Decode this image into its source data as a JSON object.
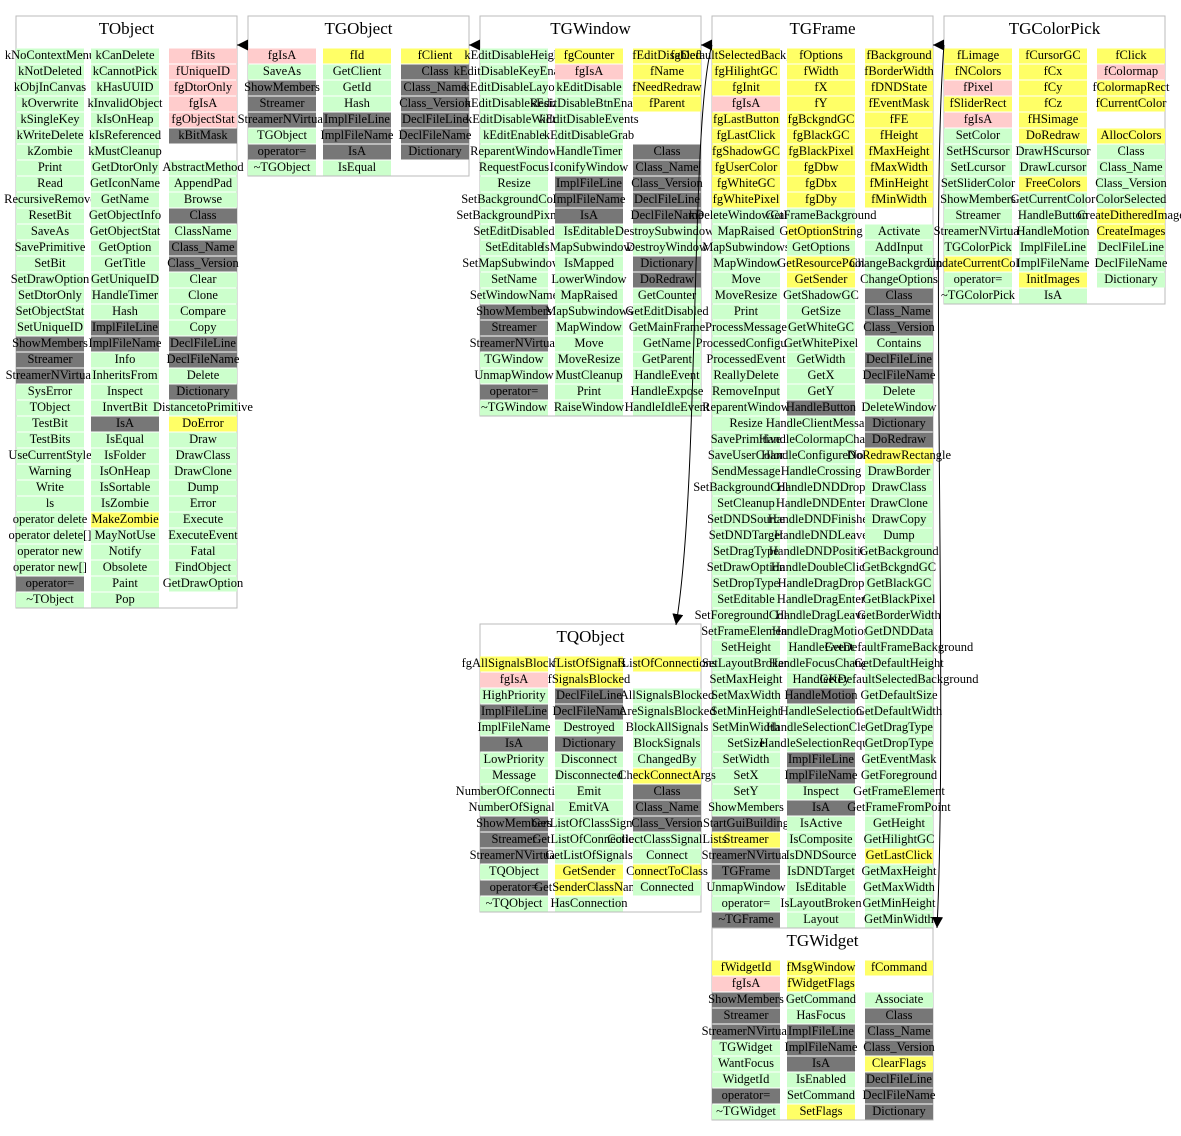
{
  "nodes": [
    {
      "title": "TObject",
      "columns": [
        {
          "cells": [
            "kNoContextMenu",
            "kNotDeleted",
            "kObjInCanvas",
            "kOverwrite",
            "kSingleKey",
            "kWriteDelete",
            "kZombie",
            "Print",
            "Read",
            "RecursiveRemove",
            "ResetBit",
            "SaveAs",
            "SavePrimitive",
            "SetBit",
            "SetDrawOption",
            "SetDtorOnly",
            "SetObjectStat",
            "SetUniqueID",
            "ShowMembers",
            "Streamer",
            "StreamerNVirtual",
            "SysError",
            "TObject",
            "TestBit",
            "TestBits",
            "UseCurrentStyle",
            "Warning",
            "Write",
            "ls",
            "operator delete",
            "operator delete[]",
            "operator new",
            "operator new[]",
            "operator=",
            "~TObject"
          ],
          "fills": "ggggggggggggggggggdddggggggggggggdg"
        },
        {
          "cells": [
            "kCanDelete",
            "kCannotPick",
            "kHasUUID",
            "kInvalidObject",
            "kIsOnHeap",
            "kIsReferenced",
            "kMustCleanup",
            "GetDtorOnly",
            "GetIconName",
            "GetName",
            "GetObjectInfo",
            "GetObjectStat",
            "GetOption",
            "GetTitle",
            "GetUniqueID",
            "HandleTimer",
            "Hash",
            "ImplFileLine",
            "ImplFileName",
            "Info",
            "InheritsFrom",
            "Inspect",
            "InvertBit",
            "IsA",
            "IsEqual",
            "IsFolder",
            "IsOnHeap",
            "IsSortable",
            "IsZombie",
            "MakeZombie",
            "MayNotUse",
            "Notify",
            "Obsolete",
            "Paint",
            "Pop"
          ],
          "fills": "gggggggggggggggggddggggdgggggyggggg"
        },
        {
          "cells": [
            "fBits",
            "fUniqueID",
            "fgDtorOnly",
            "fgIsA",
            "fgObjectStat",
            "kBitMask",
            null,
            "AbstractMethod",
            "AppendPad",
            "Browse",
            "Class",
            "ClassName",
            "Class_Name",
            "Class_Version",
            "Clear",
            "Clone",
            "Compare",
            "Copy",
            "DeclFileLine",
            "DeclFileName",
            "Delete",
            "Dictionary",
            "DistancetoPrimitive",
            "DoError",
            "Draw",
            "DrawClass",
            "DrawClone",
            "Dump",
            "Error",
            "Execute",
            "ExecuteEvent",
            "Fatal",
            "FindObject",
            "GetDrawOption"
          ],
          "fills": "pppppdwgggdgddggggddgdgygggggggggg"
        }
      ]
    },
    {
      "title": "TGObject",
      "columns": [
        {
          "cells": [
            "fgIsA",
            "SaveAs",
            "ShowMembers",
            "Streamer",
            "StreamerNVirtual",
            "TGObject",
            "operator=",
            "~TGObject"
          ],
          "fills": "pgdddgdg"
        },
        {
          "cells": [
            "fId",
            "GetClient",
            "GetId",
            "Hash",
            "ImplFileLine",
            "ImplFileName",
            "IsA",
            "IsEqual"
          ],
          "fills": "ygggdddg"
        },
        {
          "cells": [
            "fClient",
            "Class",
            "Class_Name",
            "Class_Version",
            "DeclFileLine",
            "DeclFileName",
            "Dictionary"
          ],
          "fills": "ydddddd"
        }
      ]
    },
    {
      "title": "TGWindow",
      "columns": [
        {
          "cells": [
            "kEditDisableHeight",
            "kEditDisableKeyEnable",
            "kEditDisableLayout",
            "kEditDisableResize",
            "kEditDisableWidth",
            "kEditEnable",
            "ReparentWindow",
            "RequestFocus",
            "Resize",
            "SetBackgroundColor",
            "SetBackgroundPixmap",
            "SetEditDisabled",
            "SetEditable",
            "SetMapSubwindows",
            "SetName",
            "SetWindowName",
            "ShowMembers",
            "Streamer",
            "StreamerNVirtual",
            "TGWindow",
            "UnmapWindow",
            "operator=",
            "~TGWindow"
          ],
          "fills": "ggggggggggggggggdddggdg"
        },
        {
          "cells": [
            "fgCounter",
            "fgIsA",
            "kEditDisable",
            "kEditDisableBtnEnable",
            "kEditDisableEvents",
            "kEditDisableGrab",
            "HandleTimer",
            "IconifyWindow",
            "ImplFileLine",
            "ImplFileName",
            "IsA",
            "IsEditable",
            "IsMapSubwindows",
            "IsMapped",
            "LowerWindow",
            "MapRaised",
            "MapSubwindows",
            "MapWindow",
            "Move",
            "MoveResize",
            "MustCleanup",
            "Print",
            "RaiseWindow"
          ],
          "fills": "ypggggggdddgggggggggggg"
        },
        {
          "cells": [
            "fEditDisabled",
            "fName",
            "fNeedRedraw",
            "fParent",
            null,
            null,
            "Class",
            "Class_Name",
            "Class_Version",
            "DeclFileLine",
            "DeclFileName",
            "DestroySubwindows",
            "DestroyWindow",
            "Dictionary",
            "DoRedraw",
            "GetCounter",
            "GetEditDisabled",
            "GetMainFrame",
            "GetName",
            "GetParent",
            "HandleEvent",
            "HandleExpose",
            "HandleIdleEvent"
          ],
          "fills": "yyyywwdddddggddgggggggg"
        }
      ]
    },
    {
      "title": "TGFrame",
      "columns": [
        {
          "cells": [
            "fgDefaultSelectedBackground",
            "fgHilightGC",
            "fgInit",
            "fgIsA",
            "fgLastButton",
            "fgLastClick",
            "fgShadowGC",
            "fgUserColor",
            "fgWhiteGC",
            "fgWhitePixel",
            "kDeleteWindowCalled",
            "MapRaised",
            "MapSubwindows",
            "MapWindow",
            "Move",
            "MoveResize",
            "Print",
            "ProcessMessage",
            "ProcessedConfigure",
            "ProcessedEvent",
            "ReallyDelete",
            "RemoveInput",
            "ReparentWindow",
            "Resize",
            "SavePrimitive",
            "SaveUserColor",
            "SendMessage",
            "SetBackgroundColor",
            "SetCleanup",
            "SetDNDSource",
            "SetDNDTarget",
            "SetDragType",
            "SetDrawOption",
            "SetDropType",
            "SetEditable",
            "SetForegroundColor",
            "SetFrameElement",
            "SetHeight",
            "SetLayoutBroken",
            "SetMaxHeight",
            "SetMaxWidth",
            "SetMinHeight",
            "SetMinWidth",
            "SetSize",
            "SetWidth",
            "SetX",
            "SetY",
            "ShowMembers",
            "StartGuiBuilding",
            "Streamer",
            "StreamerNVirtual",
            "TGFrame",
            "UnmapWindow",
            "operator=",
            "~TGFrame"
          ],
          "fills": "yyypyyyyyyggggggggggggggggggggggggggggggggggggggdyddggdg"
        },
        {
          "cells": [
            "fOptions",
            "fWidth",
            "fX",
            "fY",
            "fgBckgndGC",
            "fgBlackGC",
            "fgBlackPixel",
            "fgDbw",
            "fgDbx",
            "fgDby",
            "GetFrameBackground",
            "GetOptionString",
            "GetOptions",
            "GetResourcePool",
            "GetSender",
            "GetShadowGC",
            "GetSize",
            "GetWhiteGC",
            "GetWhitePixel",
            "GetWidth",
            "GetX",
            "GetY",
            "HandleButton",
            "HandleClientMessage",
            "HandleColormapChange",
            "HandleConfigureNotify",
            "HandleCrossing",
            "HandleDNDDrop",
            "HandleDNDEnter",
            "HandleDNDFinished",
            "HandleDNDLeave",
            "HandleDNDPosition",
            "HandleDoubleClick",
            "HandleDragDrop",
            "HandleDragEnter",
            "HandleDragLeave",
            "HandleDragMotion",
            "HandleEvent",
            "HandleFocusChange",
            "HandleKey",
            "HandleMotion",
            "HandleSelection",
            "HandleSelectionClear",
            "HandleSelectionRequest",
            "ImplFileLine",
            "ImplFileName",
            "Inspect",
            "IsA",
            "IsActive",
            "IsComposite",
            "IsDNDSource",
            "IsDNDTarget",
            "IsEditable",
            "IsLayoutBroken",
            "Layout"
          ],
          "fills": "yyyyyyyyyygygyygggggggdgggggggggggggggggdgggddgdggggggg"
        },
        {
          "cells": [
            "fBackground",
            "fBorderWidth",
            "fDNDState",
            "fEventMask",
            "fFE",
            "fHeight",
            "fMaxHeight",
            "fMaxWidth",
            "fMinHeight",
            "fMinWidth",
            null,
            "Activate",
            "AddInput",
            "ChangeBackground",
            "ChangeOptions",
            "Class",
            "Class_Name",
            "Class_Version",
            "Contains",
            "DeclFileLine",
            "DeclFileName",
            "Delete",
            "DeleteWindow",
            "Dictionary",
            "DoRedraw",
            "DoRedrawRectangle",
            "DrawBorder",
            "DrawClass",
            "DrawClone",
            "DrawCopy",
            "Dump",
            "GetBackground",
            "GetBckgndGC",
            "GetBlackGC",
            "GetBlackPixel",
            "GetBorderWidth",
            "GetDNDData",
            "GetDefaultFrameBackground",
            "GetDefaultHeight",
            "GetDefaultSelectedBackground",
            "GetDefaultSize",
            "GetDefaultWidth",
            "GetDragType",
            "GetDropType",
            "GetEventMask",
            "GetForeground",
            "GetFrameElement",
            "GetFrameFromPoint",
            "GetHeight",
            "GetHilightGC",
            "GetLastClick",
            "GetMaxHeight",
            "GetMaxWidth",
            "GetMinHeight",
            "GetMinWidth"
          ],
          "fills": "yyyyyyyyyywggggdddgddggddyggggggggggggggggggggggggygggg"
        }
      ]
    },
    {
      "title": "TGColorPick",
      "columns": [
        {
          "cells": [
            "fLimage",
            "fNColors",
            "fPixel",
            "fSliderRect",
            "fgIsA",
            "SetColor",
            "SetHScursor",
            "SetLcursor",
            "SetSliderColor",
            "ShowMembers",
            "Streamer",
            "StreamerNVirtual",
            "TGColorPick",
            "UpdateCurrentColor",
            "operator=",
            "~TGColorPick"
          ],
          "fills": "yypypggggggggygg"
        },
        {
          "cells": [
            "fCursorGC",
            "fCx",
            "fCy",
            "fCz",
            "fHSimage",
            "DoRedraw",
            "DrawHScursor",
            "DrawLcursor",
            "FreeColors",
            "GetCurrentColor",
            "HandleButton",
            "HandleMotion",
            "ImplFileLine",
            "ImplFileName",
            "InitImages",
            "IsA"
          ],
          "fills": "yyyyyyggygggggyg"
        },
        {
          "cells": [
            "fClick",
            "fColormap",
            "fColormapRect",
            "fCurrentColor",
            null,
            "AllocColors",
            "Class",
            "Class_Name",
            "Class_Version",
            "ColorSelected",
            "CreateDitheredImage",
            "CreateImages",
            "DeclFileLine",
            "DeclFileName",
            "Dictionary"
          ],
          "fills": "ypyywyggggyyggg"
        }
      ]
    },
    {
      "title": "TQObject",
      "columns": [
        {
          "cells": [
            "fgAllSignalsBlocked",
            "fgIsA",
            "HighPriority",
            "ImplFileLine",
            "ImplFileName",
            "IsA",
            "LowPriority",
            "Message",
            "NumberOfConnections",
            "NumberOfSignals",
            "ShowMembers",
            "Streamer",
            "StreamerNVirtual",
            "TQObject",
            "operator=",
            "~TQObject"
          ],
          "fills": "ypgdgdggggdddgdg"
        },
        {
          "cells": [
            "fListOfSignals",
            "fSignalsBlocked",
            "DeclFileLine",
            "DeclFileName",
            "Destroyed",
            "Dictionary",
            "Disconnect",
            "Disconnected",
            "Emit",
            "EmitVA",
            "GetListOfClassSignals",
            "GetListOfConnections",
            "GetListOfSignals",
            "GetSender",
            "GetSenderClassName",
            "HasConnection"
          ],
          "fills": "yyddgdgggggggyyg"
        },
        {
          "cells": [
            "fListOfConnections",
            null,
            "AllSignalsBlocked",
            "AreSignalsBlocked",
            "BlockAllSignals",
            "BlockSignals",
            "ChangedBy",
            "CheckConnectArgs",
            "Class",
            "Class_Name",
            "Class_Version",
            "CollectClassSignalLists",
            "Connect",
            "ConnectToClass",
            "Connected"
          ],
          "fills": "ywgggggydddggyg"
        }
      ]
    },
    {
      "title": "TGWidget",
      "columns": [
        {
          "cells": [
            "fWidgetId",
            "fgIsA",
            "ShowMembers",
            "Streamer",
            "StreamerNVirtual",
            "TGWidget",
            "WantFocus",
            "WidgetId",
            "operator=",
            "~TGWidget"
          ],
          "fills": "ypdddgggdg"
        },
        {
          "cells": [
            "fMsgWindow",
            "fWidgetFlags",
            "GetCommand",
            "HasFocus",
            "ImplFileLine",
            "ImplFileName",
            "IsA",
            "IsEnabled",
            "SetCommand",
            "SetFlags"
          ],
          "fills": "yyggdddggy"
        },
        {
          "cells": [
            "fCommand",
            null,
            "Associate",
            "Class",
            "Class_Name",
            "Class_Version",
            "ClearFlags",
            "DeclFileLine",
            "DeclFileName",
            "Dictionary"
          ],
          "fills": "ywgdddyddd"
        }
      ]
    }
  ]
}
